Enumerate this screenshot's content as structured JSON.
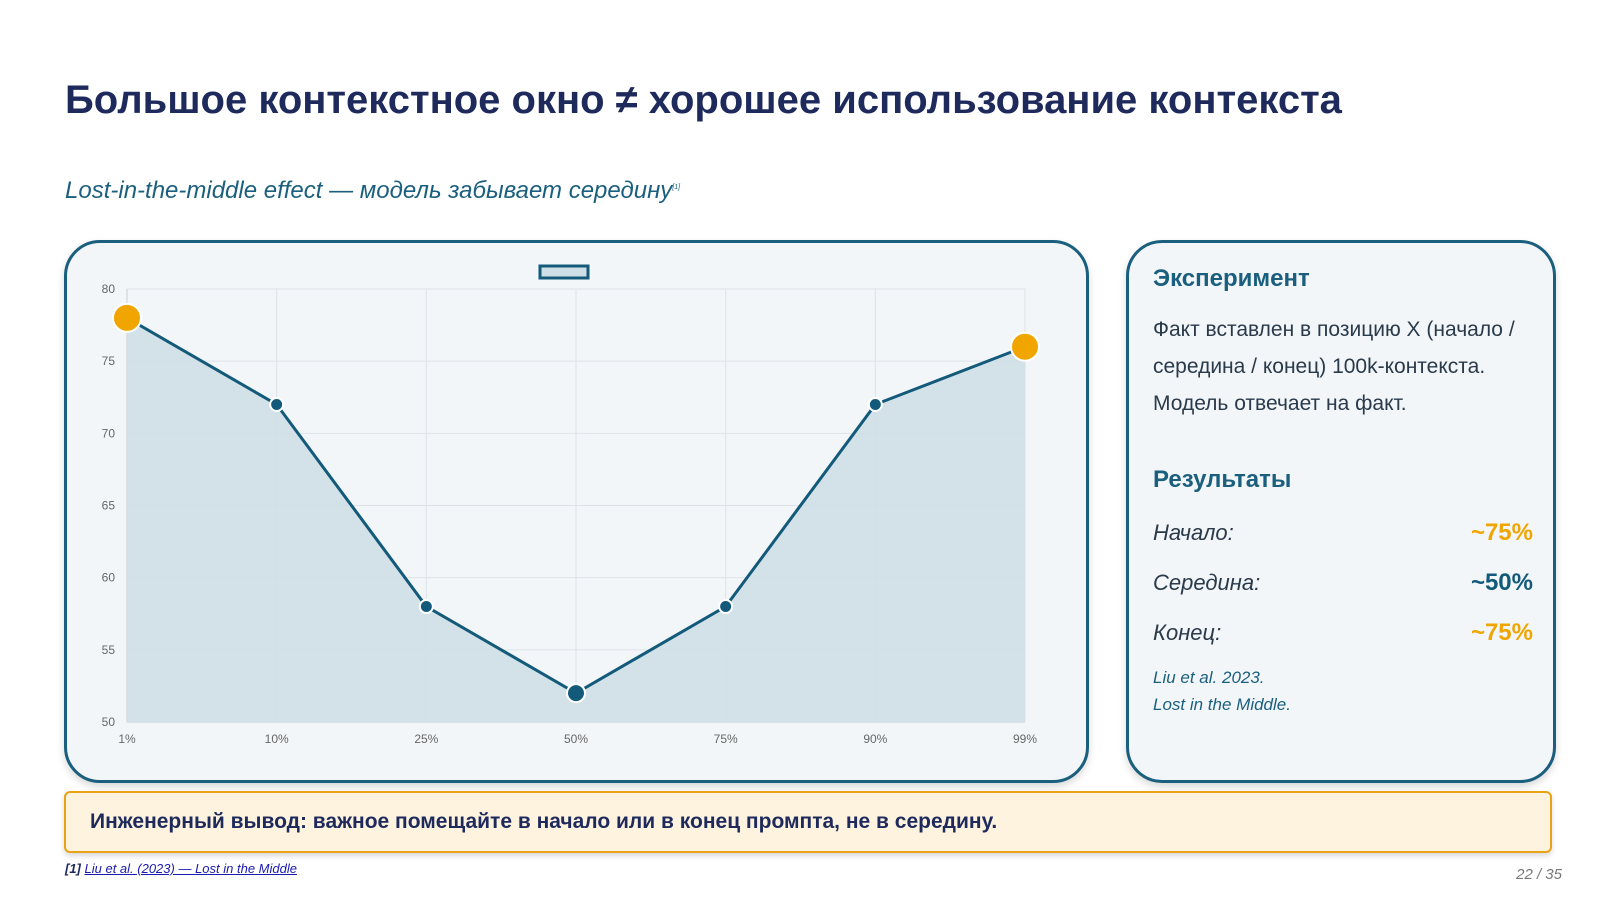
{
  "slide": {
    "title": "Большое контекстное окно ≠ хорошее использование контекста",
    "subtitle": "Lost-in-the-middle effect — модель забывает середину",
    "subtitle_ref": "[1]"
  },
  "chart_data": {
    "type": "line",
    "x": [
      "1%",
      "10%",
      "25%",
      "50%",
      "75%",
      "90%",
      "99%"
    ],
    "series": [
      {
        "values": [
          78,
          72,
          58,
          52,
          58,
          72,
          76
        ]
      }
    ],
    "ylim": [
      50,
      80
    ],
    "yticks": [
      50,
      55,
      60,
      65,
      70,
      75,
      80
    ],
    "grid": true,
    "legend": "top",
    "highlighted_points": [
      0,
      6
    ],
    "colors": {
      "line": "#135a7a",
      "fill": "#cfdfe7",
      "highlight": "#f0a500"
    }
  },
  "info": {
    "experiment_title": "Эксперимент",
    "experiment_text": "Факт вставлен в позицию X (начало / середина / конец) 100k-контекста. Модель отвечает на факт.",
    "results_title": "Результаты",
    "results": [
      {
        "label": "Начало:",
        "value": "~75%",
        "color": "#f0a500"
      },
      {
        "label": "Середина:",
        "value": "~50%",
        "color": "#135a7a"
      },
      {
        "label": "Конец:",
        "value": "~75%",
        "color": "#f0a500"
      }
    ],
    "citation_line1": "Liu et al. 2023.",
    "citation_line2": "Lost in the Middle."
  },
  "takeaway": "Инженерный вывод: важное помещайте в начало или в конец промпта, не в середину.",
  "footnote": {
    "ref": "[1]",
    "link_text": "Liu et al. (2023) — Lost in the Middle"
  },
  "page_number": "22 / 35"
}
